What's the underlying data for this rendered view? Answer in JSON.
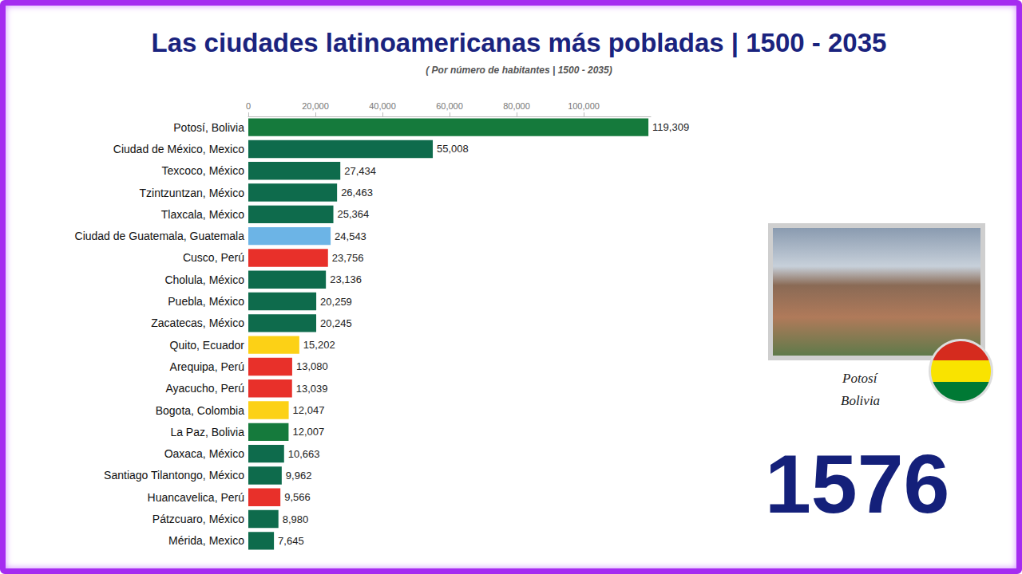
{
  "chart_data": {
    "type": "bar",
    "orientation": "horizontal",
    "title": "Las ciudades latinoamericanas más pobladas | 1500 - 2035",
    "subtitle": "( Por número de habitantes | 1500 - 2035)",
    "categories": [
      "Potosí, Bolivia",
      "Ciudad de México, Mexico",
      "Texcoco, México",
      "Tzintzuntzan, México",
      "Tlaxcala, México",
      "Ciudad de Guatemala, Guatemala",
      "Cusco, Perú",
      "Cholula, México",
      "Puebla, México",
      "Zacatecas, México",
      "Quito, Ecuador",
      "Arequipa, Perú",
      "Ayacucho, Perú",
      "Bogota, Colombia",
      "La Paz, Bolivia",
      "Oaxaca, México",
      "Santiago Tilantongo, México",
      "Huancavelica, Perú",
      "Pátzcuaro, México",
      "Mérida, Mexico"
    ],
    "values": [
      119309,
      55008,
      27434,
      26463,
      25364,
      24543,
      23756,
      23136,
      20259,
      20245,
      15202,
      13080,
      13039,
      12047,
      12007,
      10663,
      9962,
      9566,
      8980,
      7645
    ],
    "value_labels": [
      "119,309",
      "55,008",
      "27,434",
      "26,463",
      "25,364",
      "24,543",
      "23,756",
      "23,136",
      "20,259",
      "20,245",
      "15,202",
      "13,080",
      "13,039",
      "12,047",
      "12,007",
      "10,663",
      "9,962",
      "9,566",
      "8,980",
      "7,645"
    ],
    "colors": [
      "#157a3c",
      "#0e6b4c",
      "#0e6b4c",
      "#0e6b4c",
      "#0e6b4c",
      "#6cb4e6",
      "#e8302a",
      "#0e6b4c",
      "#0e6b4c",
      "#0e6b4c",
      "#fcd116",
      "#e8302a",
      "#e8302a",
      "#fcd116",
      "#157a3c",
      "#0e6b4c",
      "#0e6b4c",
      "#e8302a",
      "#0e6b4c",
      "#0e6b4c"
    ],
    "data_labels": true,
    "xlim": [
      0,
      120000
    ],
    "xticks": [
      0,
      {
        "value": 20000,
        "label": "20,000"
      },
      {
        "value": 40000,
        "label": "40,000"
      },
      {
        "value": 60000,
        "label": "60,000"
      },
      {
        "value": 80000,
        "label": "80,000"
      },
      {
        "value": 100000,
        "label": "100,000"
      }
    ],
    "grid": false,
    "annotations": [
      "1576",
      "Potosí",
      "Bolivia"
    ]
  }
}
